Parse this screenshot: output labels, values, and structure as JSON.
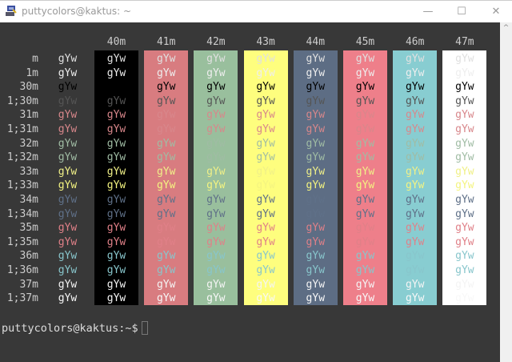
{
  "window": {
    "title": "puttycolors@kaktus: ~",
    "minimize": "—",
    "maximize": "☐",
    "close": "✕"
  },
  "terminal": {
    "sample_text": "gYw",
    "default_bg": "#383838",
    "columns": [
      {
        "label": "",
        "bg": null
      },
      {
        "label": "40m",
        "bg": "#000000"
      },
      {
        "label": "41m",
        "bg": "#d87c80"
      },
      {
        "label": "42m",
        "bg": "#99bf9d"
      },
      {
        "label": "43m",
        "bg": "#fefe7e"
      },
      {
        "label": "44m",
        "bg": "#5d6d84"
      },
      {
        "label": "45m",
        "bg": "#ee7f8a"
      },
      {
        "label": "46m",
        "bg": "#88cdd1"
      },
      {
        "label": "47m",
        "bg": "#ffffff"
      }
    ],
    "rows": [
      {
        "label": "m",
        "fg": "#e0e0e0"
      },
      {
        "label": "1m",
        "fg": "#eeeeee"
      },
      {
        "label": "30m",
        "fg": "#000000"
      },
      {
        "label": "1;30m",
        "fg": "#555555"
      },
      {
        "label": "31m",
        "fg": "#d8878b"
      },
      {
        "label": "1;31m",
        "fg": "#d8878b"
      },
      {
        "label": "32m",
        "fg": "#a0bca4"
      },
      {
        "label": "1;32m",
        "fg": "#a0bca4"
      },
      {
        "label": "33m",
        "fg": "#f0f088"
      },
      {
        "label": "1;33m",
        "fg": "#f4f480"
      },
      {
        "label": "34m",
        "fg": "#5f7088"
      },
      {
        "label": "1;34m",
        "fg": "#5f7088"
      },
      {
        "label": "35m",
        "fg": "#e08088"
      },
      {
        "label": "1;35m",
        "fg": "#e08088"
      },
      {
        "label": "36m",
        "fg": "#88c6cc"
      },
      {
        "label": "1;36m",
        "fg": "#88c6cc"
      },
      {
        "label": "37m",
        "fg": "#f4f4f4"
      },
      {
        "label": "1;37m",
        "fg": "#f8f8f8"
      }
    ],
    "prompt": "puttycolors@kaktus:~$"
  }
}
